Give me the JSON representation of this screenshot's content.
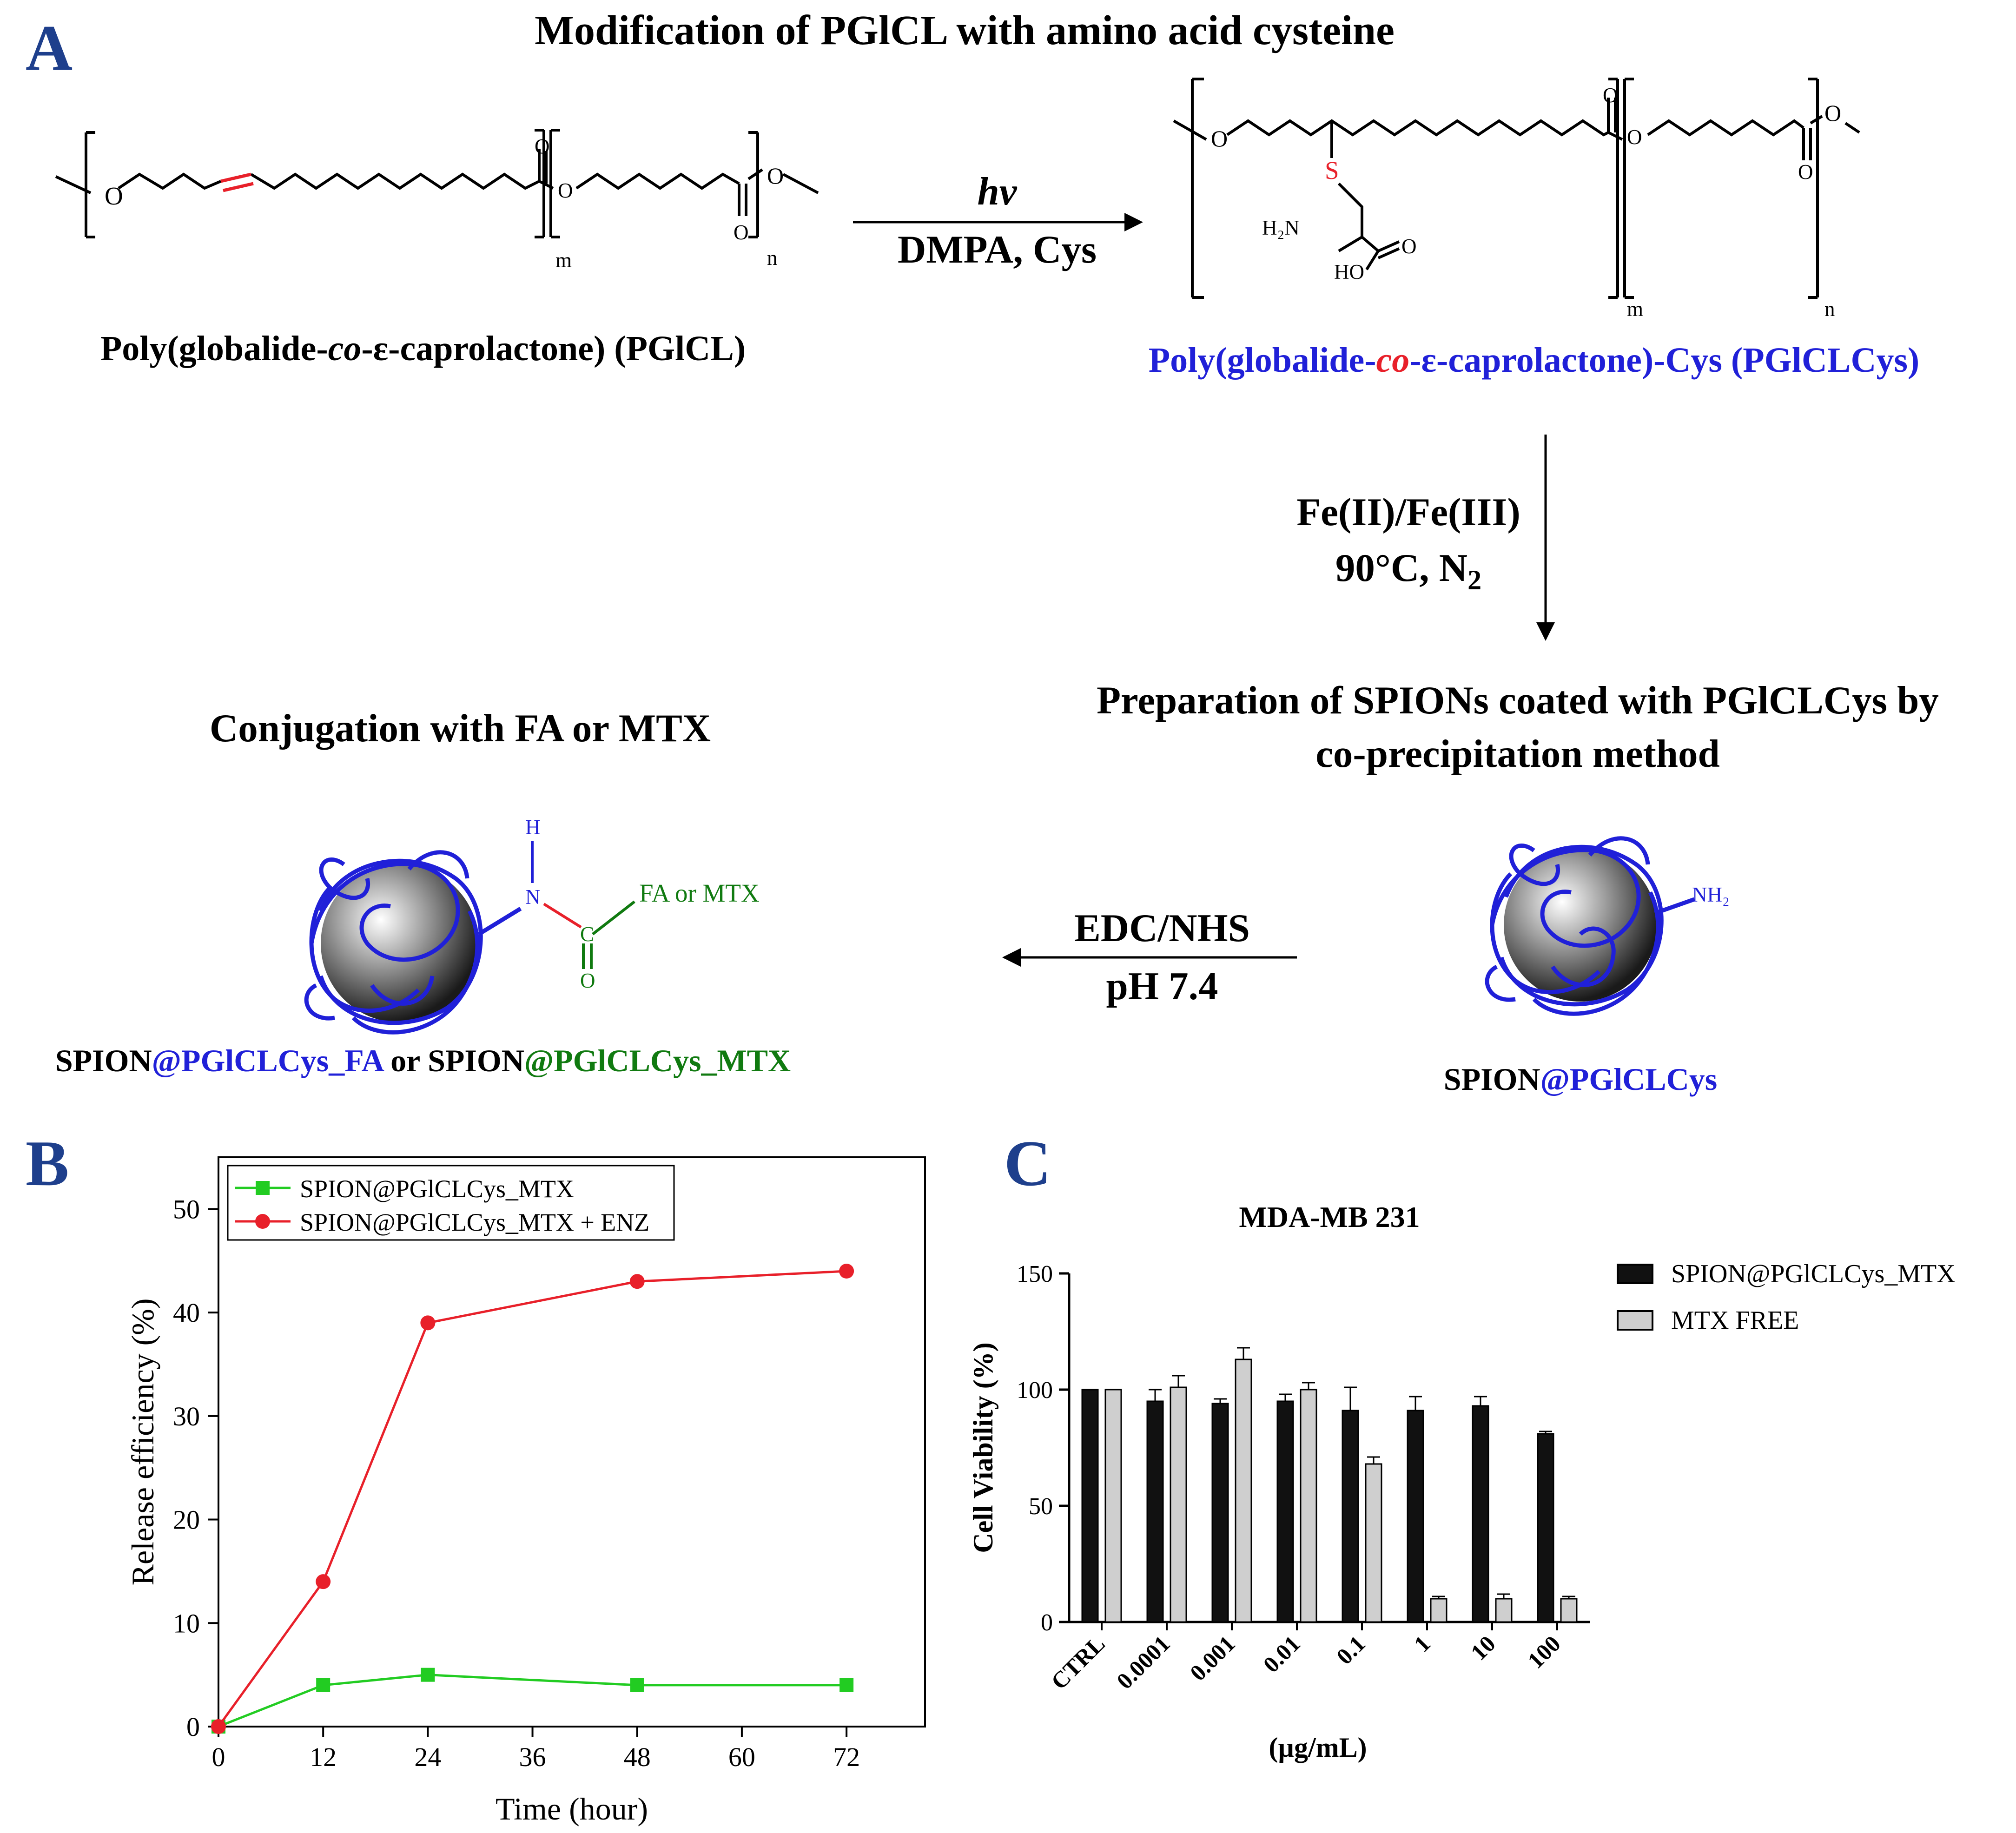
{
  "panelA": {
    "label": "A",
    "title": "Modification of PGlCL with amino acid cysteine",
    "reagent_top": "hv",
    "reagent_bottom": "DMPA, Cys",
    "polymer_name_prefix": "Poly(globalide-",
    "polymer_name_co": "co",
    "polymer_name_suffix": "-ε-caprolactone) (PGlCL)",
    "cys_name_prefix": "Poly(globalide-",
    "cys_name_co": "co",
    "cys_name_suffix": "-ε-caprolactone)-Cys (PGlCLCys)",
    "sub_m": "m",
    "sub_n": "n",
    "atom_O": "O",
    "atom_S": "S",
    "atom_H2N": "H₂N",
    "atom_HO": "HO",
    "arrow_down_line1": "Fe(II)/Fe(III)",
    "arrow_down_line2": "90°C, N",
    "arrow_down_line2_sub": "2",
    "prep_title_line1": "Preparation of SPIONs coated with PGlCLCys by",
    "prep_title_line2": "co-precipitation method",
    "conj_title": "Conjugation with FA or MTX",
    "edc_top": "EDC/NHS",
    "edc_bottom": "pH 7.4",
    "nh2_label": "NH₂",
    "amide_h": "H",
    "amide_n": "N",
    "amide_c": "C",
    "amide_o": "O",
    "fa_mtx_label": "FA or MTX",
    "product_left_a": "SPION",
    "product_left_b": "@PGlCLCys_FA",
    "product_left_or": " or SPION",
    "product_left_c": "@PGlCLCys_MTX",
    "product_right_a": "SPION",
    "product_right_b": "@PGlCLCys",
    "colors": {
      "red": "#e8202a",
      "blue": "#2020d8",
      "green": "#107a10",
      "navy": "#1e3f8c"
    }
  },
  "chart_data": [
    {
      "panel": "B",
      "type": "line",
      "title": "",
      "xlabel": "Time (hour)",
      "ylabel": "Release efficiency (%)",
      "xlim": [
        0,
        81
      ],
      "ylim": [
        0,
        55
      ],
      "xticks": [
        0,
        12,
        24,
        36,
        48,
        60,
        72
      ],
      "yticks": [
        0,
        10,
        20,
        30,
        40,
        50
      ],
      "legend_position": "top-left",
      "series": [
        {
          "name": "SPION@PGlCLCys_MTX",
          "color": "#22cc22",
          "marker": "square",
          "x": [
            0,
            12,
            24,
            48,
            72
          ],
          "y": [
            0,
            4,
            5,
            4,
            4
          ]
        },
        {
          "name": "SPION@PGlCLCys_MTX + ENZ",
          "color": "#e8202a",
          "marker": "circle",
          "x": [
            0,
            12,
            24,
            48,
            72
          ],
          "y": [
            0,
            14,
            39,
            43,
            44
          ]
        }
      ]
    },
    {
      "panel": "C",
      "type": "bar",
      "title": "MDA-MB 231",
      "xlabel": "(µg/mL)",
      "ylabel": "Cell Viability (%)",
      "ylim": [
        0,
        150
      ],
      "yticks": [
        0,
        50,
        100,
        150
      ],
      "categories": [
        "CTRL",
        "0.0001",
        "0.001",
        "0.01",
        "0.1",
        "1",
        "10",
        "100"
      ],
      "legend_position": "top-right",
      "series": [
        {
          "name": "SPION@PGlCLCys_MTX",
          "color": "#111111",
          "values": [
            100,
            95,
            94,
            95,
            91,
            91,
            93,
            81
          ],
          "errors": [
            0,
            5,
            2,
            3,
            10,
            6,
            4,
            1
          ]
        },
        {
          "name": "MTX FREE",
          "color": "#cfcfcf",
          "values": [
            100,
            101,
            113,
            100,
            68,
            10,
            10,
            10
          ],
          "errors": [
            0,
            5,
            5,
            3,
            3,
            1,
            2,
            1
          ]
        }
      ]
    }
  ]
}
